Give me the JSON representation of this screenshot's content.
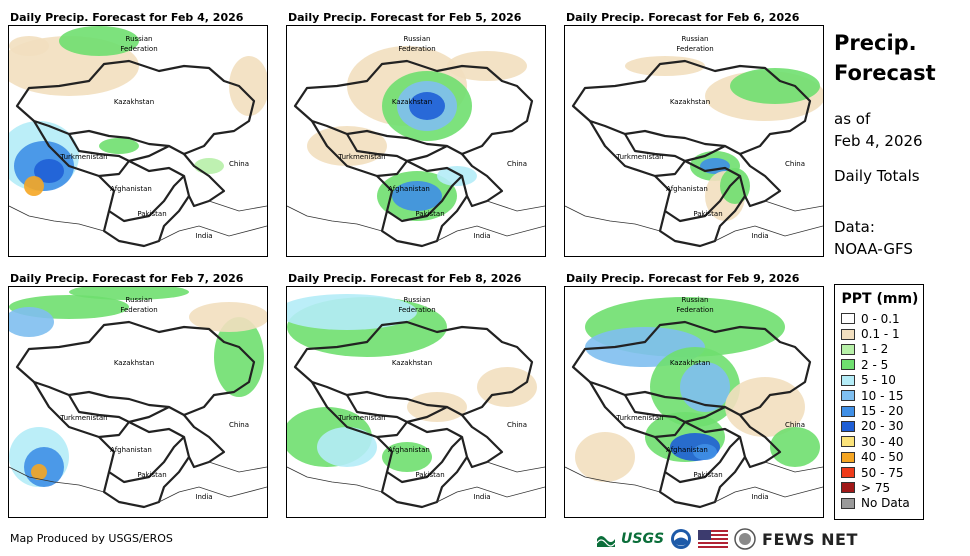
{
  "panels": [
    {
      "title": "Daily Precip. Forecast for Feb 4, 2026",
      "pattern": "west-heavy"
    },
    {
      "title": "Daily Precip. Forecast for Feb 5, 2026",
      "pattern": "north-central"
    },
    {
      "title": "Daily Precip. Forecast for Feb 6, 2026",
      "pattern": "east-band"
    },
    {
      "title": "Daily Precip. Forecast for Feb 7, 2026",
      "pattern": "light"
    },
    {
      "title": "Daily Precip. Forecast for Feb 8, 2026",
      "pattern": "broad-west"
    },
    {
      "title": "Daily Precip. Forecast for Feb 9, 2026",
      "pattern": "widespread"
    }
  ],
  "map_labels": {
    "russia": "Russian",
    "federation": "Federation",
    "kazakhstan": "Kazakhstan",
    "turkmenistan": "Turkmenistan",
    "afghanistan": "Afghanistan",
    "pakistan": "Pakistan",
    "china": "China",
    "india": "India"
  },
  "sidebar": {
    "title_line1": "Precip.",
    "title_line2": "Forecast",
    "asof_line1": "as of",
    "asof_line2": "Feb 4, 2026",
    "daily": "Daily Totals",
    "data_line1": "Data:",
    "data_line2": "NOAA-GFS"
  },
  "legend": {
    "title": "PPT (mm)",
    "items": [
      {
        "label": "0 - 0.1",
        "color": "#ffffff"
      },
      {
        "label": "0.1 - 1",
        "color": "#f2dfbf"
      },
      {
        "label": "1 - 2",
        "color": "#b7f0a8"
      },
      {
        "label": "2 - 5",
        "color": "#6fdf6f"
      },
      {
        "label": "5 - 10",
        "color": "#b4ecf7"
      },
      {
        "label": "10 - 15",
        "color": "#7fbff0"
      },
      {
        "label": "15 - 20",
        "color": "#3f8fe6"
      },
      {
        "label": "20 - 30",
        "color": "#1f5fd6"
      },
      {
        "label": "30 - 40",
        "color": "#fbe37a"
      },
      {
        "label": "40 - 50",
        "color": "#f5a623"
      },
      {
        "label": "50 - 75",
        "color": "#ee3b1a"
      },
      {
        "label": "> 75",
        "color": "#a01818"
      },
      {
        "label": "No Data",
        "color": "#9a9a9a"
      }
    ]
  },
  "credit": "Map Produced by USGS/EROS",
  "logos": {
    "usgs": "USGS",
    "fewsnet": "FEWS NET"
  }
}
